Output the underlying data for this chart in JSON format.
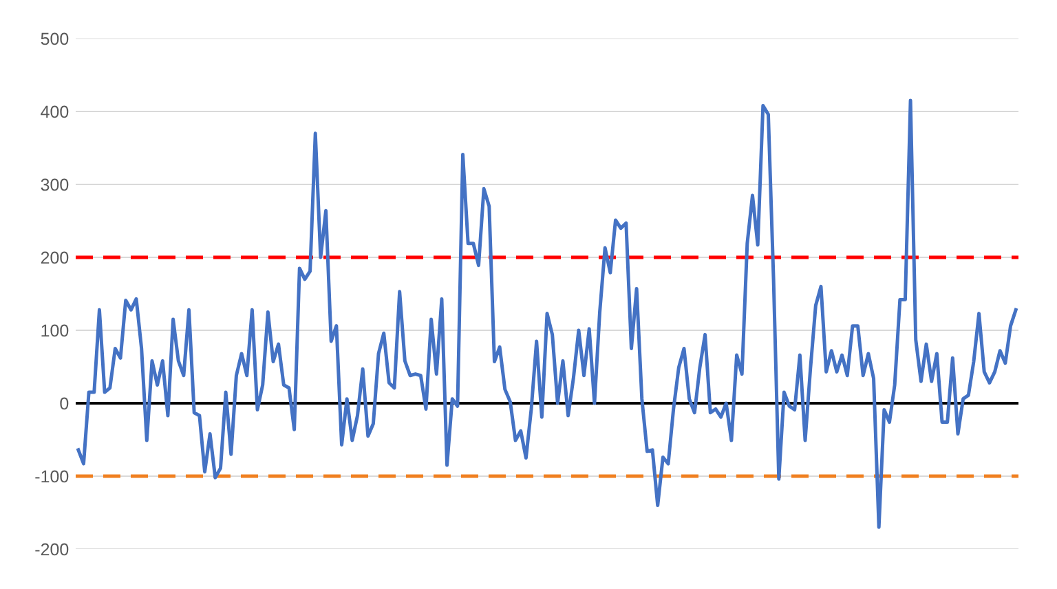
{
  "chart_data": {
    "type": "line",
    "categories": [
      null,
      null,
      null,
      null,
      null,
      null,
      null,
      null,
      null,
      null,
      null,
      null,
      null,
      null,
      null,
      null,
      null,
      null,
      null,
      null,
      null,
      null,
      null,
      null,
      null,
      null,
      null,
      null,
      null,
      null,
      null,
      null,
      null,
      null,
      null,
      null,
      null,
      null,
      null,
      null,
      null,
      null,
      null,
      null,
      null,
      null,
      null,
      null,
      null,
      null,
      null,
      null,
      null,
      null,
      null,
      null,
      null,
      null,
      null,
      null,
      null,
      null,
      null,
      null,
      null,
      null,
      null,
      null,
      null,
      null,
      null,
      null,
      null,
      null,
      null,
      null,
      null,
      null,
      null,
      null,
      null,
      null,
      null,
      null,
      null,
      null,
      null,
      null,
      null,
      null,
      null,
      null,
      null,
      null,
      null,
      null,
      null,
      null,
      null,
      null,
      null,
      null,
      null,
      null,
      null,
      null,
      null,
      null,
      null,
      null,
      null,
      null,
      null,
      null,
      null,
      null,
      null,
      null,
      null,
      null,
      null,
      null,
      null,
      null,
      null,
      null,
      null,
      null,
      null,
      null,
      null,
      null,
      null,
      null,
      null,
      null,
      null,
      null,
      null,
      null,
      null,
      null,
      null,
      null,
      null,
      null,
      null,
      null,
      null,
      null,
      null,
      null,
      null,
      null,
      null,
      null,
      null,
      null,
      null,
      null,
      null,
      null,
      null,
      null,
      null,
      null,
      null,
      null,
      null,
      null,
      null,
      null,
      null,
      null,
      null,
      null,
      null,
      null,
      null
    ],
    "series": [
      {
        "color": "#4472c4",
        "values": [
          -64,
          -83,
          15,
          15,
          128,
          15,
          21,
          75,
          62,
          141,
          128,
          143,
          75,
          -51,
          58,
          25,
          58,
          -17,
          115,
          58,
          38,
          128,
          -13,
          -17,
          -94,
          -42,
          -102,
          -89,
          15,
          -70,
          38,
          68,
          38,
          128,
          -9,
          25,
          125,
          57,
          81,
          25,
          21,
          -36,
          185,
          170,
          181,
          370,
          200,
          264,
          85,
          106,
          -57,
          6,
          -51,
          -17,
          47,
          -45,
          -28,
          68,
          96,
          28,
          21,
          153,
          58,
          38,
          40,
          38,
          -8,
          115,
          40,
          143,
          -85,
          6,
          -4,
          341,
          219,
          219,
          189,
          294,
          270,
          57,
          77,
          19,
          2,
          -51,
          -38,
          -75,
          -8,
          85,
          -19,
          123,
          94,
          0,
          58,
          -17,
          34,
          100,
          38,
          102,
          0,
          125,
          213,
          179,
          251,
          240,
          247,
          75,
          157,
          6,
          -66,
          -64,
          -140,
          -74,
          -83,
          -8,
          49,
          75,
          6,
          -13,
          49,
          94,
          -13,
          -8,
          -19,
          0,
          -51,
          66,
          40,
          219,
          285,
          217,
          408,
          396,
          170,
          -104,
          15,
          -4,
          -9,
          66,
          -51,
          47,
          134,
          160,
          43,
          72,
          43,
          66,
          38,
          106,
          106,
          38,
          68,
          34,
          -170,
          -9,
          -26,
          25,
          142,
          142,
          415,
          87,
          30,
          81,
          30,
          68,
          -26,
          -26,
          62,
          -42,
          6,
          11,
          57,
          123,
          43,
          28,
          43,
          72,
          55,
          106,
          128
        ]
      }
    ],
    "ylim": [
      -200,
      500
    ],
    "yticks": [
      -200,
      -100,
      0,
      100,
      200,
      300,
      400,
      500
    ],
    "grid": "y",
    "line_style": "solid",
    "ref_lines": [
      {
        "axis": "y",
        "value": 200,
        "color": "#ff0000",
        "line_style": "dashed"
      },
      {
        "axis": "y",
        "value": -100,
        "color": "#f08020",
        "line_style": "dashed"
      },
      {
        "axis": "y",
        "value": 0,
        "color": "#000000",
        "line_style": "solid"
      }
    ]
  }
}
